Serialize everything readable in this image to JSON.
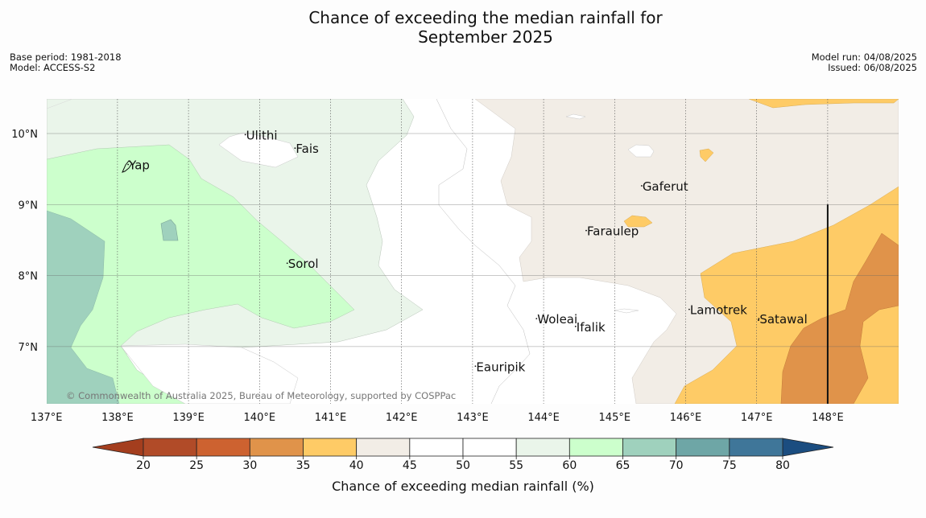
{
  "title_line1": "Chance of exceeding the median rainfall for",
  "title_line2": "September 2025",
  "meta_left": {
    "base_period": "Base period: 1981-2018",
    "model": "Model: ACCESS-S2"
  },
  "meta_right": {
    "model_run": "Model run: 04/08/2025",
    "issued": "Issued: 06/08/2025"
  },
  "copyright": "© Commonwealth of Australia 2025, Bureau of Meteorology, supported by COSPPac",
  "map": {
    "lon_range": [
      137.0,
      149.0
    ],
    "lat_range": [
      6.2,
      10.5
    ],
    "lon_ticks": [
      {
        "value": 137,
        "label": "137°E"
      },
      {
        "value": 138,
        "label": "138°E"
      },
      {
        "value": 139,
        "label": "139°E"
      },
      {
        "value": 140,
        "label": "140°E"
      },
      {
        "value": 141,
        "label": "141°E"
      },
      {
        "value": 142,
        "label": "142°E"
      },
      {
        "value": 143,
        "label": "143°E"
      },
      {
        "value": 144,
        "label": "144°E"
      },
      {
        "value": 145,
        "label": "145°E"
      },
      {
        "value": 146,
        "label": "146°E"
      },
      {
        "value": 147,
        "label": "147°E"
      },
      {
        "value": 148,
        "label": "148°E"
      }
    ],
    "lat_ticks": [
      {
        "value": 10,
        "label": "10°N"
      },
      {
        "value": 9,
        "label": "9°N"
      },
      {
        "value": 8,
        "label": "8°N"
      },
      {
        "value": 7,
        "label": "7°N"
      }
    ],
    "places": [
      {
        "name": "Ulithi",
        "lon": 139.8,
        "lat": 9.95
      },
      {
        "name": "Fais",
        "lon": 140.5,
        "lat": 9.76
      },
      {
        "name": "Yap",
        "lon": 138.15,
        "lat": 9.53
      },
      {
        "name": "Gaferut",
        "lon": 145.38,
        "lat": 9.23
      },
      {
        "name": "Faraulep",
        "lon": 144.6,
        "lat": 8.6
      },
      {
        "name": "Sorol",
        "lon": 140.39,
        "lat": 8.14
      },
      {
        "name": "Lamotrek",
        "lon": 146.05,
        "lat": 7.49
      },
      {
        "name": "Woleai",
        "lon": 143.9,
        "lat": 7.36
      },
      {
        "name": "Ifalik",
        "lon": 144.45,
        "lat": 7.25
      },
      {
        "name": "Satawal",
        "lon": 147.03,
        "lat": 7.36
      },
      {
        "name": "Eauripik",
        "lon": 143.04,
        "lat": 6.69
      }
    ],
    "line_148E": {
      "lon": 148,
      "lat_from": 6.2,
      "lat_to": 9.0
    }
  },
  "colorbar": {
    "label": "Chance of exceeding median rainfall (%)",
    "ticks": [
      "20",
      "25",
      "30",
      "35",
      "40",
      "45",
      "50",
      "55",
      "60",
      "65",
      "70",
      "75",
      "80"
    ],
    "colors": [
      "#b14b28",
      "#cd6230",
      "#e0934a",
      "#fecb66",
      "#f2ede6",
      "#ffffff",
      "#ffffff",
      "#eaf5ea",
      "#ccffcc",
      "#9fd1bd",
      "#6ea6a6",
      "#3f7699"
    ],
    "under_color": "#a43e1e",
    "over_color": "#1b4d80"
  }
}
